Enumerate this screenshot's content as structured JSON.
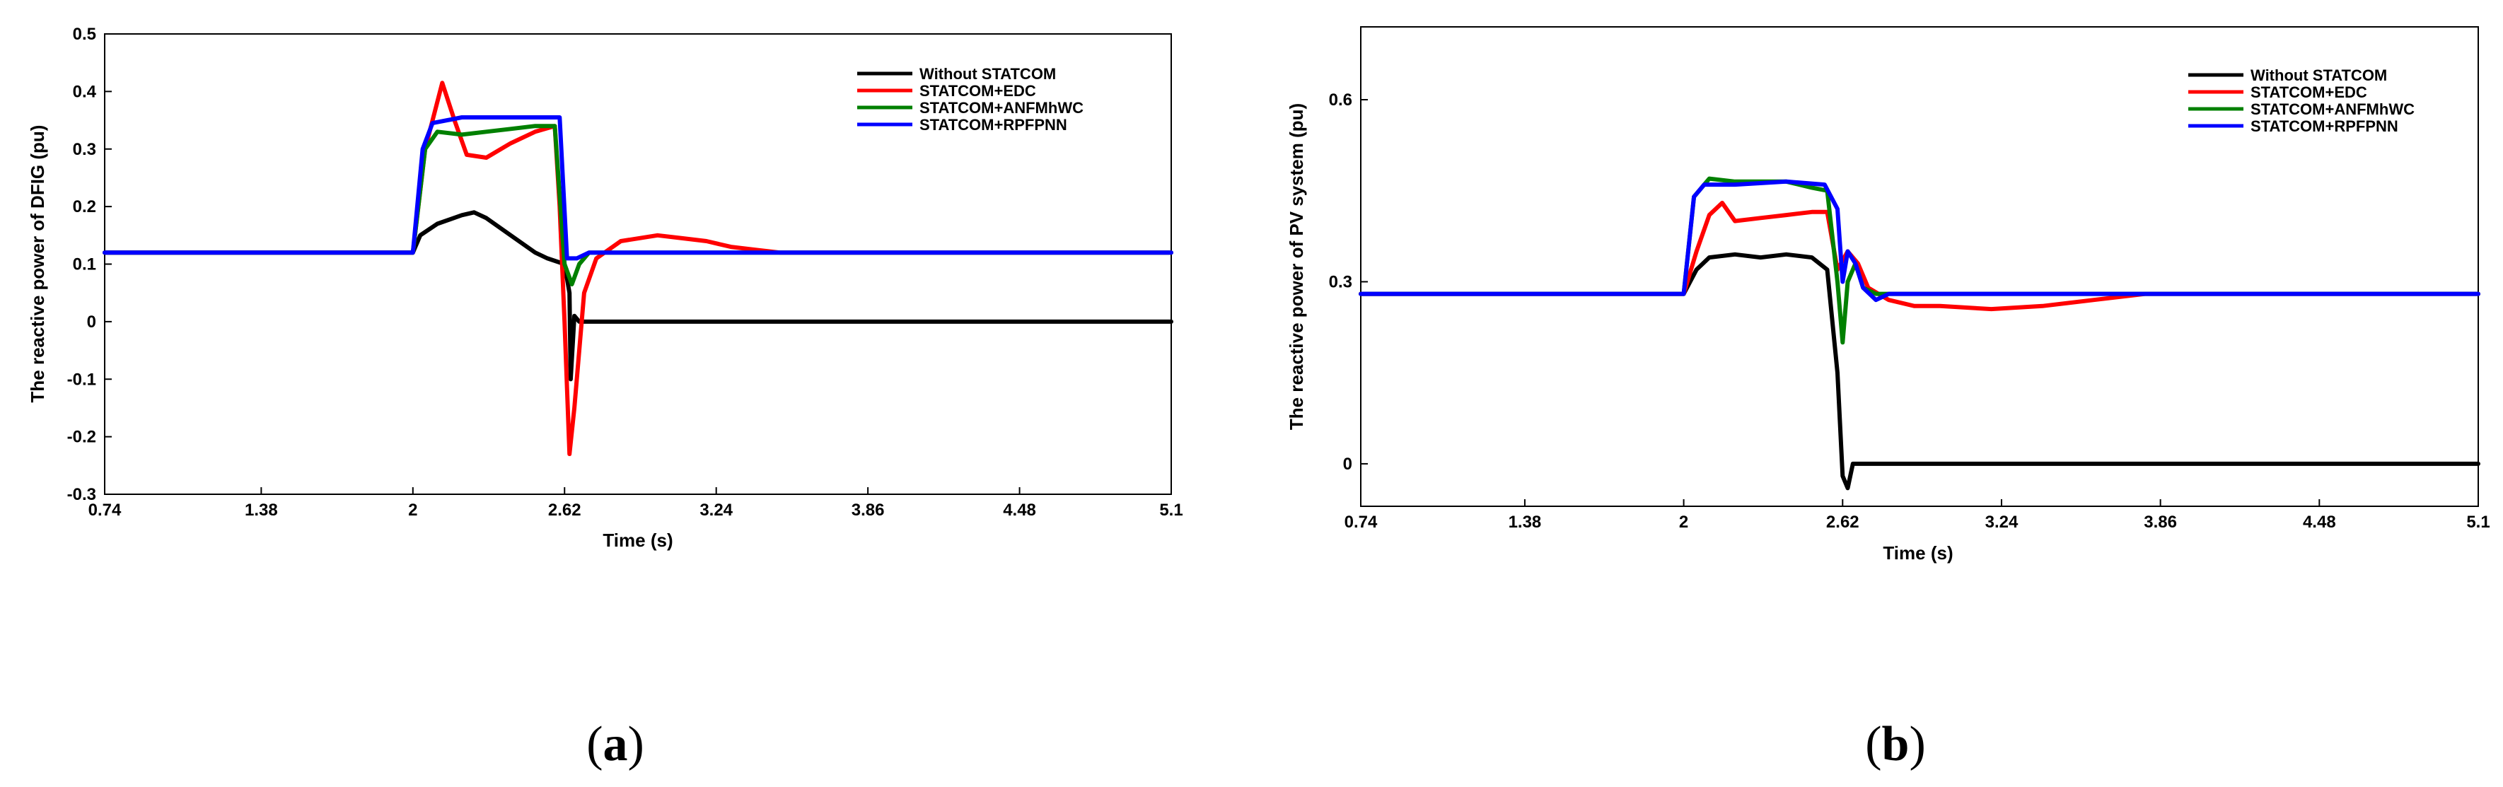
{
  "chart_data": [
    {
      "type": "line",
      "panel_label": {
        "open": "(",
        "letter": "a",
        "close": ")"
      },
      "xlabel": "Time (s)",
      "ylabel": "The reactive power of DFIG (pu)",
      "xlim": [
        0.74,
        5.1
      ],
      "ylim": [
        -0.3,
        0.5
      ],
      "xticks": [
        0.74,
        1.38,
        2,
        2.62,
        3.24,
        3.86,
        4.48,
        5.1
      ],
      "xtick_labels": [
        "0.74",
        "1.38",
        "2",
        "2.62",
        "3.24",
        "3.86",
        "4.48",
        "5.1"
      ],
      "yticks": [
        -0.3,
        -0.2,
        -0.1,
        0,
        0.1,
        0.2,
        0.3,
        0.4,
        0.5
      ],
      "ytick_labels": [
        "-0.3",
        "-0.2",
        "-0.1",
        "0",
        "0.1",
        "0.2",
        "0.3",
        "0.4",
        "0.5"
      ],
      "grid": false,
      "legend_position": "top-right",
      "series": [
        {
          "name": "Without STATCOM",
          "color": "#000000",
          "x": [
            0.74,
            2.0,
            2.03,
            2.1,
            2.2,
            2.25,
            2.3,
            2.4,
            2.5,
            2.55,
            2.62,
            2.64,
            2.645,
            2.66,
            2.68,
            2.7,
            5.1
          ],
          "y": [
            0.12,
            0.12,
            0.15,
            0.17,
            0.185,
            0.19,
            0.18,
            0.15,
            0.12,
            0.11,
            0.1,
            0.05,
            -0.1,
            0.01,
            0.0,
            0.0,
            0.0
          ]
        },
        {
          "name": "STATCOM+EDC",
          "color": "#ff0000",
          "x": [
            0.74,
            2.0,
            2.05,
            2.12,
            2.17,
            2.22,
            2.3,
            2.4,
            2.5,
            2.58,
            2.6,
            2.62,
            2.64,
            2.66,
            2.68,
            2.7,
            2.75,
            2.85,
            3.0,
            3.1,
            3.2,
            3.3,
            3.4,
            3.5,
            5.1
          ],
          "y": [
            0.12,
            0.12,
            0.3,
            0.415,
            0.35,
            0.29,
            0.285,
            0.31,
            0.33,
            0.34,
            0.2,
            0.0,
            -0.23,
            -0.15,
            -0.05,
            0.05,
            0.11,
            0.14,
            0.15,
            0.145,
            0.14,
            0.13,
            0.125,
            0.12,
            0.12
          ]
        },
        {
          "name": "STATCOM+ANFMhWC",
          "color": "#008000",
          "x": [
            0.74,
            2.0,
            2.05,
            2.1,
            2.2,
            2.3,
            2.4,
            2.5,
            2.58,
            2.62,
            2.65,
            2.68,
            2.72,
            2.8,
            5.1
          ],
          "y": [
            0.12,
            0.12,
            0.3,
            0.33,
            0.325,
            0.33,
            0.335,
            0.34,
            0.34,
            0.1,
            0.065,
            0.1,
            0.12,
            0.12,
            0.12
          ]
        },
        {
          "name": "STATCOM+RPFPNN",
          "color": "#0000ff",
          "x": [
            0.74,
            2.0,
            2.04,
            2.08,
            2.2,
            2.4,
            2.55,
            2.6,
            2.63,
            2.67,
            2.72,
            2.8,
            5.1
          ],
          "y": [
            0.12,
            0.12,
            0.3,
            0.345,
            0.355,
            0.355,
            0.355,
            0.355,
            0.11,
            0.11,
            0.12,
            0.12,
            0.12
          ]
        }
      ]
    },
    {
      "type": "line",
      "panel_label": {
        "open": "(",
        "letter": "b",
        "close": ")"
      },
      "xlabel": "Time (s)",
      "ylabel": "The reactive power of PV system (pu)",
      "xlim": [
        0.74,
        5.1
      ],
      "ylim": [
        -0.07,
        0.72
      ],
      "xticks": [
        0.74,
        1.38,
        2,
        2.62,
        3.24,
        3.86,
        4.48,
        5.1
      ],
      "xtick_labels": [
        "0.74",
        "1.38",
        "2",
        "2.62",
        "3.24",
        "3.86",
        "4.48",
        "5.1"
      ],
      "yticks": [
        0,
        0.3,
        0.6
      ],
      "ytick_labels": [
        "0",
        "0.3",
        "0.6"
      ],
      "grid": false,
      "legend_position": "top-right",
      "series": [
        {
          "name": "Without STATCOM",
          "color": "#000000",
          "x": [
            0.74,
            2.0,
            2.05,
            2.1,
            2.2,
            2.3,
            2.4,
            2.5,
            2.56,
            2.6,
            2.62,
            2.64,
            2.66,
            2.68,
            5.1
          ],
          "y": [
            0.28,
            0.28,
            0.32,
            0.34,
            0.345,
            0.34,
            0.345,
            0.34,
            0.32,
            0.15,
            -0.02,
            -0.04,
            0.0,
            0.0,
            0.0
          ]
        },
        {
          "name": "STATCOM+EDC",
          "color": "#ff0000",
          "x": [
            0.74,
            2.0,
            2.05,
            2.1,
            2.15,
            2.2,
            2.3,
            2.4,
            2.5,
            2.56,
            2.6,
            2.64,
            2.68,
            2.72,
            2.8,
            2.9,
            3.0,
            3.2,
            3.4,
            3.6,
            3.8,
            3.9,
            5.1
          ],
          "y": [
            0.28,
            0.28,
            0.35,
            0.41,
            0.43,
            0.4,
            0.405,
            0.41,
            0.415,
            0.415,
            0.32,
            0.35,
            0.33,
            0.29,
            0.27,
            0.26,
            0.26,
            0.255,
            0.26,
            0.27,
            0.28,
            0.28,
            0.28
          ]
        },
        {
          "name": "STATCOM+ANFMhWC",
          "color": "#008000",
          "x": [
            0.74,
            2.0,
            2.04,
            2.08,
            2.1,
            2.2,
            2.3,
            2.4,
            2.5,
            2.56,
            2.6,
            2.62,
            2.64,
            2.67,
            2.7,
            2.75,
            2.8,
            5.1
          ],
          "y": [
            0.28,
            0.28,
            0.44,
            0.46,
            0.47,
            0.465,
            0.465,
            0.465,
            0.455,
            0.45,
            0.3,
            0.2,
            0.3,
            0.33,
            0.29,
            0.28,
            0.28,
            0.28
          ]
        },
        {
          "name": "STATCOM+RPFPNN",
          "color": "#0000ff",
          "x": [
            0.74,
            2.0,
            2.04,
            2.08,
            2.2,
            2.4,
            2.55,
            2.6,
            2.62,
            2.64,
            2.67,
            2.7,
            2.75,
            2.8,
            5.1
          ],
          "y": [
            0.28,
            0.28,
            0.44,
            0.46,
            0.46,
            0.465,
            0.46,
            0.42,
            0.3,
            0.35,
            0.33,
            0.29,
            0.27,
            0.28,
            0.28
          ]
        }
      ]
    }
  ]
}
